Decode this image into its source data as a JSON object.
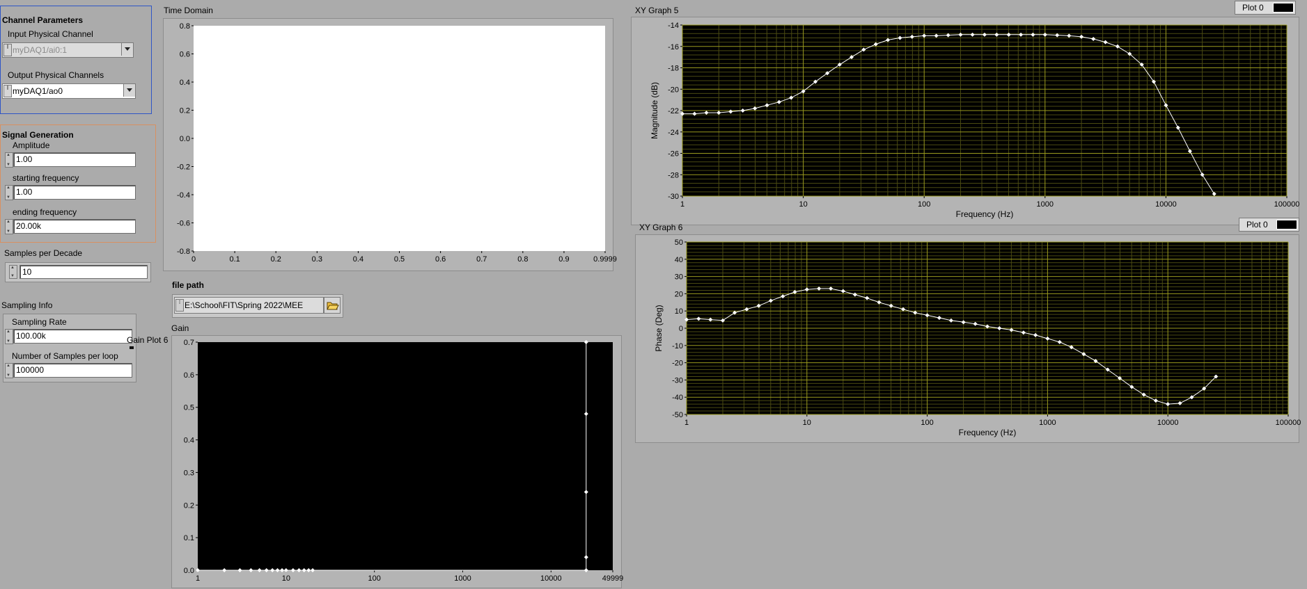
{
  "channel_parameters": {
    "title": "Channel Parameters",
    "input_label": "Input Physical Channel",
    "input_value": "myDAQ1/ai0:1",
    "output_label": "Output Physical Channels",
    "output_value": "myDAQ1/ao0",
    "io_glyph": "I/o"
  },
  "signal_generation": {
    "title": "Signal Generation",
    "amplitude_label": "Amplitude",
    "amplitude_value": "1.00",
    "start_label": "starting frequency",
    "start_value": "1.00",
    "end_label": "ending frequency",
    "end_value": "20.00k"
  },
  "samples_per_decade": {
    "label": "Samples per Decade",
    "value": "10"
  },
  "sampling_info": {
    "title": "Sampling Info",
    "rate_label": "Sampling Rate",
    "rate_value": "100.00k",
    "samples_label": "Number of Samples per loop",
    "samples_value": "100000"
  },
  "file_path": {
    "label": "file path",
    "value": "E:\\School\\FIT\\Spring 2022\\MEE",
    "folder_icon": "folder-icon"
  },
  "gain_plot_label": "Gain Plot 6",
  "colors": {
    "panel": "#ababab",
    "graph_bg": "#000000",
    "grid_major": "#9a9a1e",
    "grid_minor": "#4a4a12",
    "trace": "#ffffff"
  },
  "chart_data": [
    {
      "id": "time-domain",
      "type": "line",
      "title": "Time Domain",
      "xlim": [
        0,
        0.9999
      ],
      "ylim": [
        -0.8,
        0.8
      ],
      "x_ticks": [
        "0",
        "0.1",
        "0.2",
        "0.3",
        "0.4",
        "0.5",
        "0.6",
        "0.7",
        "0.8",
        "0.9",
        "0.9999"
      ],
      "y_ticks": [
        "0.8",
        "0.6",
        "0.4",
        "0.2",
        "0.0",
        "-0.2",
        "-0.4",
        "-0.6",
        "-0.8"
      ],
      "series": []
    },
    {
      "id": "gain",
      "type": "line",
      "title": "Gain",
      "x_scale": "log",
      "xlim": [
        1,
        49999
      ],
      "ylim": [
        0,
        0.7
      ],
      "x_ticks": [
        "1",
        "10",
        "100",
        "1000",
        "10000",
        "49999"
      ],
      "y_ticks": [
        "0.7",
        "0.6",
        "0.5",
        "0.4",
        "0.3",
        "0.2",
        "0.1",
        "0.0"
      ],
      "series": [
        {
          "x": [
            1,
            2,
            3,
            4,
            5,
            6,
            7,
            8,
            9,
            10,
            12,
            14,
            16,
            18,
            20,
            25000,
            25000,
            25000,
            25000,
            25000
          ],
          "y": [
            0,
            0,
            0,
            0,
            0,
            0,
            0,
            0,
            0,
            0,
            0,
            0,
            0,
            0,
            0,
            0.0,
            0.04,
            0.24,
            0.48,
            0.7
          ]
        }
      ]
    },
    {
      "id": "xy-graph-5",
      "type": "line",
      "title": "XY Graph 5",
      "legend": "Plot 0",
      "x_scale": "log",
      "xlabel": "Frequency (Hz)",
      "ylabel": "Magnitude (dB)",
      "xlim": [
        1,
        100000
      ],
      "ylim": [
        -30,
        -14
      ],
      "x_ticks": [
        "1",
        "10",
        "100",
        "1000",
        "10000",
        "100000"
      ],
      "y_ticks": [
        "-14",
        "-16",
        "-18",
        "-20",
        "-22",
        "-24",
        "-26",
        "-28",
        "-30"
      ],
      "series": [
        {
          "x": [
            1,
            1.26,
            1.58,
            2,
            2.51,
            3.16,
            3.98,
            5.01,
            6.31,
            7.94,
            10,
            12.6,
            15.8,
            20,
            25.1,
            31.6,
            39.8,
            50.1,
            63.1,
            79.4,
            100,
            126,
            158,
            200,
            251,
            316,
            398,
            501,
            631,
            794,
            1000,
            1260,
            1580,
            2000,
            2510,
            3160,
            3980,
            5010,
            6310,
            7940,
            10000,
            12600,
            15800,
            20000,
            25100
          ],
          "y": [
            -22.3,
            -22.3,
            -22.2,
            -22.2,
            -22.1,
            -22.0,
            -21.8,
            -21.5,
            -21.2,
            -20.8,
            -20.2,
            -19.3,
            -18.5,
            -17.7,
            -17.0,
            -16.3,
            -15.8,
            -15.4,
            -15.2,
            -15.1,
            -15.0,
            -15.0,
            -14.95,
            -14.9,
            -14.9,
            -14.9,
            -14.9,
            -14.9,
            -14.9,
            -14.9,
            -14.9,
            -14.95,
            -15.0,
            -15.1,
            -15.3,
            -15.6,
            -16.0,
            -16.7,
            -17.7,
            -19.3,
            -21.5,
            -23.6,
            -25.8,
            -28.0,
            -29.8
          ]
        }
      ]
    },
    {
      "id": "xy-graph-6",
      "type": "line",
      "title": "XY Graph 6",
      "legend": "Plot 0",
      "x_scale": "log",
      "xlabel": "Frequency (Hz)",
      "ylabel": "Phase (Deg)",
      "xlim": [
        1,
        100000
      ],
      "ylim": [
        -50,
        50
      ],
      "x_ticks": [
        "1",
        "10",
        "100",
        "1000",
        "10000",
        "100000"
      ],
      "y_ticks": [
        "50",
        "40",
        "30",
        "20",
        "10",
        "0",
        "-10",
        "-20",
        "-30",
        "-40",
        "-50"
      ],
      "series": [
        {
          "x": [
            1,
            1.26,
            1.58,
            2,
            2.51,
            3.16,
            3.98,
            5.01,
            6.31,
            7.94,
            10,
            12.6,
            15.8,
            20,
            25.1,
            31.6,
            39.8,
            50.1,
            63.1,
            79.4,
            100,
            126,
            158,
            200,
            251,
            316,
            398,
            501,
            631,
            794,
            1000,
            1260,
            1580,
            2000,
            2510,
            3160,
            3980,
            5010,
            6310,
            7940,
            10000,
            12600,
            15800,
            20000,
            25100
          ],
          "y": [
            5,
            5.5,
            5,
            4.5,
            9,
            11,
            13,
            16,
            18.5,
            21,
            22.5,
            23,
            23,
            21.5,
            19.5,
            17.5,
            15,
            13,
            11,
            9,
            7.5,
            6,
            4.5,
            3.5,
            2.5,
            1,
            0,
            -1,
            -2.5,
            -4,
            -6,
            -8,
            -11,
            -15,
            -19,
            -24,
            -29,
            -34,
            -38.5,
            -42,
            -44,
            -43.5,
            -40,
            -35,
            -28
          ]
        }
      ]
    }
  ]
}
